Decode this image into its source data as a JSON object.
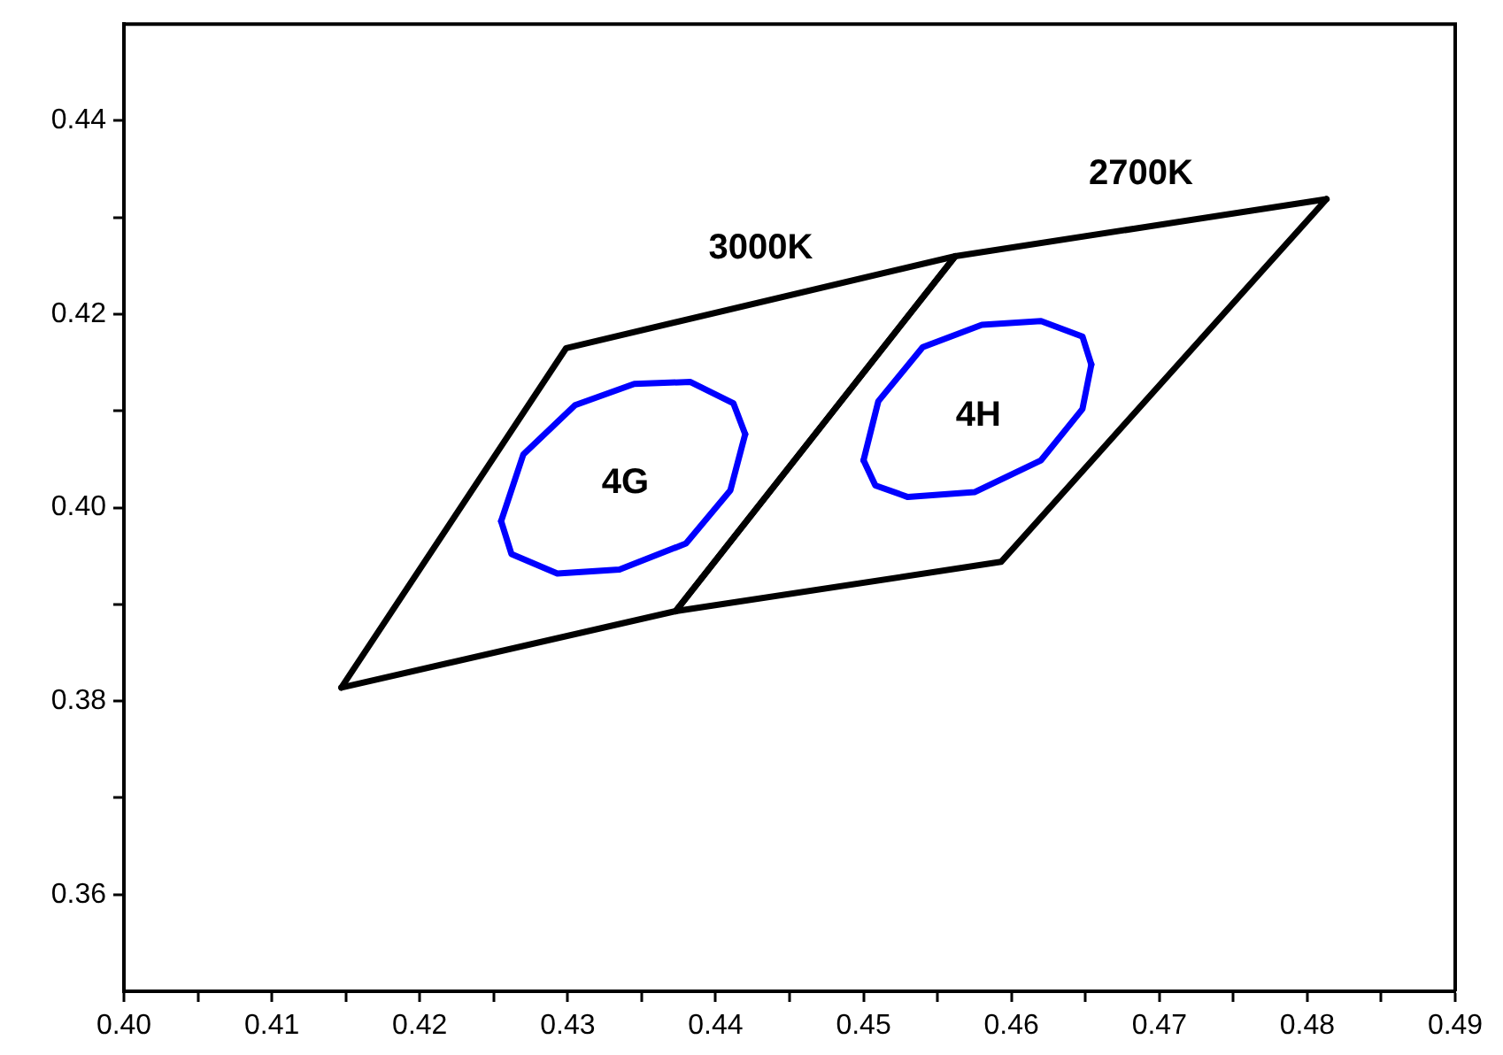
{
  "chart_data": {
    "type": "line",
    "xlim": [
      0.4,
      0.49
    ],
    "xticks": [
      {
        "value": 0.4,
        "label": "0.40"
      },
      {
        "value": 0.405,
        "label": null
      },
      0.41,
      {
        "value": 0.415,
        "label": null
      },
      0.42,
      {
        "value": 0.425,
        "label": null
      },
      0.43,
      {
        "value": 0.435,
        "label": null
      },
      0.44,
      {
        "value": 0.445,
        "label": null
      },
      0.45,
      {
        "value": 0.455,
        "label": null
      },
      0.46,
      {
        "value": 0.465,
        "label": null
      },
      0.47,
      {
        "value": 0.475,
        "label": null
      },
      0.48,
      {
        "value": 0.485,
        "label": null
      },
      0.49
    ],
    "ylim": [
      0.35,
      0.45
    ],
    "yticks": [
      0.36,
      {
        "value": 0.37,
        "label": null
      },
      0.38,
      {
        "value": 0.39,
        "label": null
      },
      {
        "value": 0.4,
        "label": "0.40"
      },
      {
        "value": 0.41,
        "label": null
      },
      0.42,
      {
        "value": 0.43,
        "label": null
      },
      0.44
    ],
    "marker": "none",
    "series": [
      {
        "name": "3000K",
        "color": "#000000",
        "x": [
          0.4147,
          0.4299,
          0.4562
        ],
        "values": [
          0.3814,
          0.4165,
          0.426
        ]
      },
      {
        "color": "#000000",
        "x": [
          0.4147,
          0.4373,
          0.4562
        ],
        "values": [
          0.3814,
          0.3893,
          0.426
        ]
      },
      {
        "name": "2700K",
        "color": "#000000",
        "x": [
          0.4373,
          0.4562,
          0.4813
        ],
        "values": [
          0.3893,
          0.426,
          0.4319
        ]
      },
      {
        "color": "#000000",
        "x": [
          0.4373,
          0.4593,
          0.4813
        ],
        "values": [
          0.3893,
          0.3944,
          0.4319
        ]
      },
      {
        "name": "4G",
        "color": "#0000ff",
        "x": [
          0.4255,
          0.427,
          0.4305,
          0.4345,
          0.4383,
          0.4412,
          0.442
        ],
        "values": [
          0.3986,
          0.4055,
          0.4106,
          0.4128,
          0.413,
          0.4108,
          0.4076
        ]
      },
      {
        "color": "#0000ff",
        "x": [
          0.4255,
          0.4262,
          0.4293,
          0.4335,
          0.438,
          0.441,
          0.442
        ],
        "values": [
          0.3986,
          0.3952,
          0.3932,
          0.3936,
          0.3963,
          0.4018,
          0.4076
        ]
      },
      {
        "name": "4H",
        "color": "#0000ff",
        "x": [
          0.45,
          0.451,
          0.454,
          0.458,
          0.462,
          0.4648,
          0.4654
        ],
        "values": [
          0.4049,
          0.411,
          0.4166,
          0.4189,
          0.4193,
          0.4177,
          0.4148
        ]
      },
      {
        "color": "#0000ff",
        "x": [
          0.45,
          0.4508,
          0.453,
          0.4575,
          0.462,
          0.4648,
          0.4654
        ],
        "values": [
          0.4049,
          0.4023,
          0.4011,
          0.4016,
          0.4049,
          0.4102,
          0.4148
        ]
      }
    ]
  }
}
